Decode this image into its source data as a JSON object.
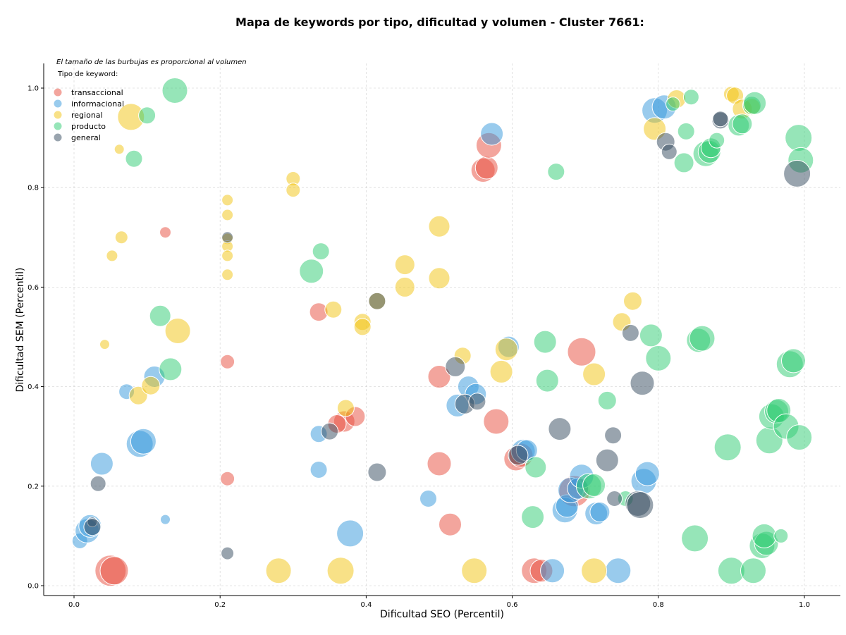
{
  "chart_data": {
    "type": "scatter",
    "title": "Mapa de keywords por tipo, dificultad y volumen - Cluster 7661:",
    "xlabel": "Dificultad SEO (Percentil)",
    "ylabel": "Dificultad SEM (Percentil)",
    "note": "El tamaño de las burbujas es proporcional al volumen",
    "legend_title": "Tipo de keyword:",
    "legend_position": "top-left",
    "xlim": [
      -0.04,
      1.05
    ],
    "ylim": [
      -0.02,
      1.05
    ],
    "xticks": [
      "0.0",
      "0.2",
      "0.4",
      "0.6",
      "0.8",
      "1.0"
    ],
    "yticks": [
      "0.0",
      "0.2",
      "0.4",
      "0.6",
      "0.8",
      "1.0"
    ],
    "grid": true,
    "series": [
      {
        "name": "transaccional",
        "color": "#e74c3c",
        "points": [
          [
            0.05,
            0.03,
            22
          ],
          [
            0.055,
            0.03,
            20
          ],
          [
            0.125,
            0.71,
            8
          ],
          [
            0.21,
            0.45,
            10
          ],
          [
            0.21,
            0.215,
            10
          ],
          [
            0.335,
            0.55,
            13
          ],
          [
            0.37,
            0.33,
            15
          ],
          [
            0.36,
            0.325,
            13
          ],
          [
            0.385,
            0.34,
            14
          ],
          [
            0.5,
            0.42,
            16
          ],
          [
            0.5,
            0.245,
            17
          ],
          [
            0.515,
            0.123,
            16
          ],
          [
            0.56,
            0.835,
            17
          ],
          [
            0.565,
            0.84,
            16
          ],
          [
            0.568,
            0.885,
            18
          ],
          [
            0.578,
            0.33,
            18
          ],
          [
            0.605,
            0.255,
            17
          ],
          [
            0.63,
            0.03,
            18
          ],
          [
            0.64,
            0.03,
            16
          ],
          [
            0.695,
            0.47,
            20
          ],
          [
            0.685,
            0.19,
            22
          ],
          [
            0.612,
            0.262,
            17
          ]
        ]
      },
      {
        "name": "informacional",
        "color": "#3498db",
        "points": [
          [
            0.008,
            0.09,
            11
          ],
          [
            0.018,
            0.11,
            17
          ],
          [
            0.022,
            0.12,
            16
          ],
          [
            0.038,
            0.245,
            16
          ],
          [
            0.072,
            0.39,
            11
          ],
          [
            0.09,
            0.285,
            19
          ],
          [
            0.095,
            0.29,
            18
          ],
          [
            0.11,
            0.42,
            15
          ],
          [
            0.125,
            0.133,
            7
          ],
          [
            0.335,
            0.305,
            12
          ],
          [
            0.335,
            0.233,
            12
          ],
          [
            0.378,
            0.105,
            19
          ],
          [
            0.485,
            0.175,
            12
          ],
          [
            0.525,
            0.362,
            16
          ],
          [
            0.54,
            0.4,
            15
          ],
          [
            0.55,
            0.385,
            15
          ],
          [
            0.572,
            0.908,
            16
          ],
          [
            0.595,
            0.48,
            15
          ],
          [
            0.615,
            0.27,
            17
          ],
          [
            0.62,
            0.272,
            15
          ],
          [
            0.655,
            0.03,
            17
          ],
          [
            0.672,
            0.152,
            18
          ],
          [
            0.675,
            0.16,
            16
          ],
          [
            0.68,
            0.192,
            18
          ],
          [
            0.69,
            0.195,
            15
          ],
          [
            0.695,
            0.22,
            17
          ],
          [
            0.715,
            0.145,
            16
          ],
          [
            0.72,
            0.148,
            14
          ],
          [
            0.745,
            0.03,
            18
          ],
          [
            0.78,
            0.21,
            18
          ],
          [
            0.785,
            0.225,
            17
          ],
          [
            0.795,
            0.955,
            18
          ],
          [
            0.808,
            0.962,
            17
          ]
        ]
      },
      {
        "name": "regional",
        "color": "#f1c40f",
        "points": [
          [
            0.042,
            0.485,
            7
          ],
          [
            0.052,
            0.663,
            8
          ],
          [
            0.062,
            0.877,
            7
          ],
          [
            0.065,
            0.7,
            9
          ],
          [
            0.078,
            0.942,
            19
          ],
          [
            0.088,
            0.382,
            13
          ],
          [
            0.105,
            0.402,
            13
          ],
          [
            0.142,
            0.512,
            18
          ],
          [
            0.21,
            0.775,
            8
          ],
          [
            0.21,
            0.745,
            8
          ],
          [
            0.21,
            0.697,
            8
          ],
          [
            0.21,
            0.682,
            8
          ],
          [
            0.21,
            0.663,
            8
          ],
          [
            0.21,
            0.625,
            8
          ],
          [
            0.28,
            0.03,
            18
          ],
          [
            0.3,
            0.818,
            10
          ],
          [
            0.3,
            0.795,
            10
          ],
          [
            0.355,
            0.555,
            12
          ],
          [
            0.365,
            0.03,
            19
          ],
          [
            0.372,
            0.357,
            12
          ],
          [
            0.395,
            0.53,
            12
          ],
          [
            0.395,
            0.52,
            12
          ],
          [
            0.415,
            0.572,
            12
          ],
          [
            0.453,
            0.645,
            14
          ],
          [
            0.453,
            0.6,
            14
          ],
          [
            0.5,
            0.722,
            15
          ],
          [
            0.5,
            0.618,
            15
          ],
          [
            0.532,
            0.462,
            12
          ],
          [
            0.548,
            0.03,
            18
          ],
          [
            0.585,
            0.43,
            16
          ],
          [
            0.592,
            0.475,
            16
          ],
          [
            0.712,
            0.425,
            16
          ],
          [
            0.712,
            0.03,
            18
          ],
          [
            0.75,
            0.53,
            13
          ],
          [
            0.765,
            0.572,
            13
          ],
          [
            0.795,
            0.918,
            16
          ],
          [
            0.825,
            0.978,
            13
          ],
          [
            0.9,
            0.988,
            11
          ],
          [
            0.905,
            0.985,
            12
          ],
          [
            0.915,
            0.958,
            14
          ],
          [
            0.928,
            0.962,
            12
          ]
        ]
      },
      {
        "name": "producto",
        "color": "#2ecc71",
        "points": [
          [
            0.082,
            0.858,
            12
          ],
          [
            0.1,
            0.945,
            12
          ],
          [
            0.118,
            0.542,
            15
          ],
          [
            0.132,
            0.435,
            16
          ],
          [
            0.138,
            0.995,
            18
          ],
          [
            0.325,
            0.632,
            17
          ],
          [
            0.338,
            0.672,
            12
          ],
          [
            0.628,
            0.138,
            16
          ],
          [
            0.632,
            0.238,
            15
          ],
          [
            0.645,
            0.49,
            16
          ],
          [
            0.648,
            0.412,
            16
          ],
          [
            0.66,
            0.832,
            12
          ],
          [
            0.705,
            0.2,
            18
          ],
          [
            0.712,
            0.202,
            16
          ],
          [
            0.73,
            0.372,
            13
          ],
          [
            0.755,
            0.175,
            11
          ],
          [
            0.79,
            0.503,
            16
          ],
          [
            0.8,
            0.457,
            18
          ],
          [
            0.82,
            0.968,
            10
          ],
          [
            0.835,
            0.85,
            14
          ],
          [
            0.838,
            0.913,
            12
          ],
          [
            0.845,
            0.982,
            11
          ],
          [
            0.85,
            0.095,
            19
          ],
          [
            0.855,
            0.493,
            17
          ],
          [
            0.86,
            0.497,
            18
          ],
          [
            0.865,
            0.868,
            18
          ],
          [
            0.87,
            0.872,
            16
          ],
          [
            0.872,
            0.88,
            14
          ],
          [
            0.88,
            0.895,
            11
          ],
          [
            0.895,
            0.278,
            19
          ],
          [
            0.91,
            0.925,
            15
          ],
          [
            0.915,
            0.928,
            14
          ],
          [
            0.928,
            0.965,
            13
          ],
          [
            0.932,
            0.97,
            16
          ],
          [
            0.9,
            0.03,
            19
          ],
          [
            0.93,
            0.03,
            18
          ],
          [
            0.942,
            0.08,
            18
          ],
          [
            0.948,
            0.085,
            17
          ],
          [
            0.945,
            0.1,
            17
          ],
          [
            0.952,
            0.292,
            19
          ],
          [
            0.955,
            0.34,
            18
          ],
          [
            0.962,
            0.35,
            17
          ],
          [
            0.965,
            0.352,
            17
          ],
          [
            0.968,
            0.1,
            10
          ],
          [
            0.975,
            0.32,
            18
          ],
          [
            0.98,
            0.445,
            19
          ],
          [
            0.985,
            0.452,
            17
          ],
          [
            0.992,
            0.9,
            19
          ],
          [
            0.993,
            0.298,
            18
          ],
          [
            0.995,
            0.855,
            18
          ]
        ]
      },
      {
        "name": "general",
        "color": "#34495e",
        "points": [
          [
            0.025,
            0.128,
            7
          ],
          [
            0.025,
            0.118,
            12
          ],
          [
            0.033,
            0.205,
            11
          ],
          [
            0.21,
            0.7,
            8
          ],
          [
            0.21,
            0.065,
            9
          ],
          [
            0.35,
            0.31,
            12
          ],
          [
            0.415,
            0.572,
            12
          ],
          [
            0.415,
            0.228,
            13
          ],
          [
            0.522,
            0.44,
            14
          ],
          [
            0.535,
            0.365,
            14
          ],
          [
            0.552,
            0.37,
            12
          ],
          [
            0.608,
            0.262,
            14
          ],
          [
            0.665,
            0.315,
            16
          ],
          [
            0.73,
            0.252,
            16
          ],
          [
            0.738,
            0.302,
            12
          ],
          [
            0.74,
            0.175,
            11
          ],
          [
            0.762,
            0.508,
            12
          ],
          [
            0.772,
            0.165,
            18
          ],
          [
            0.778,
            0.407,
            17
          ],
          [
            0.775,
            0.162,
            19
          ],
          [
            0.81,
            0.892,
            13
          ],
          [
            0.815,
            0.872,
            11
          ],
          [
            0.885,
            0.935,
            12
          ],
          [
            0.885,
            0.938,
            11
          ],
          [
            0.99,
            0.828,
            19
          ]
        ]
      }
    ]
  }
}
